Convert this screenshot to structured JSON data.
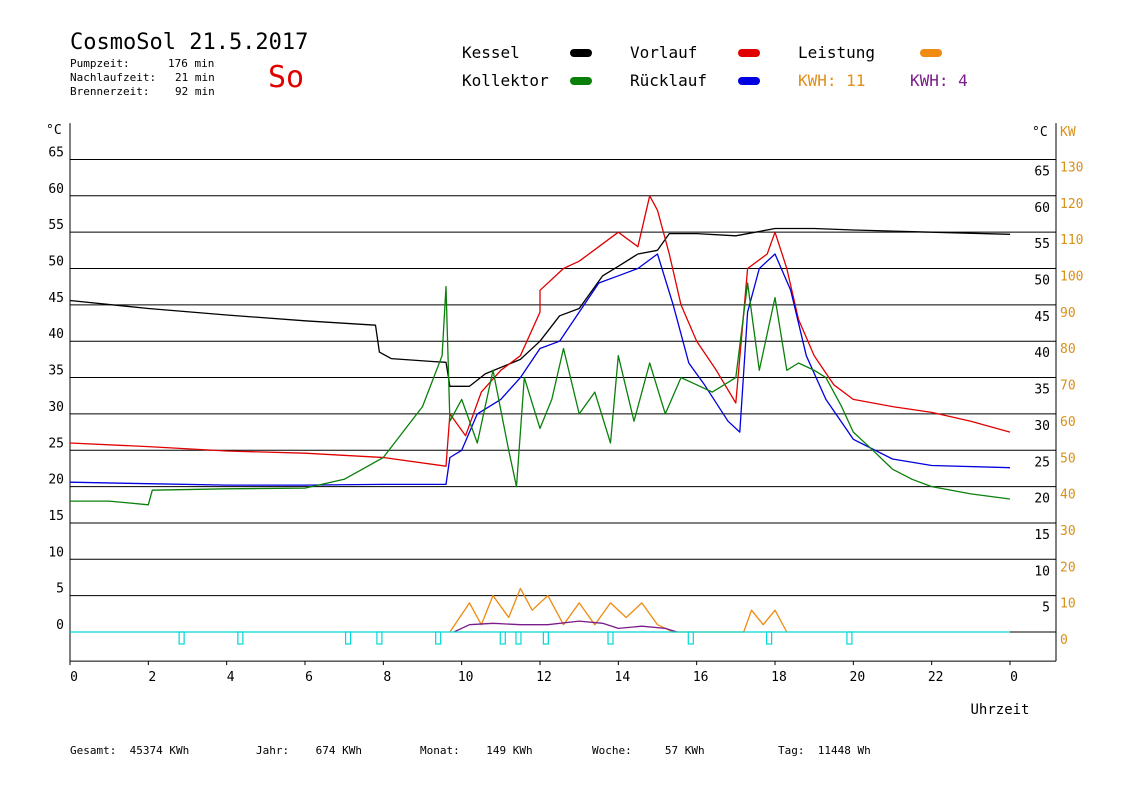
{
  "header": {
    "title": "CosmoSol 21.5.2017",
    "day_label": "So",
    "stats": [
      {
        "label": "Pumpzeit:",
        "value": "176 min"
      },
      {
        "label": "Nachlaufzeit:",
        "value": "21 min"
      },
      {
        "label": "Brennerzeit:",
        "value": "92 min"
      }
    ]
  },
  "legend": {
    "kessel": {
      "label": "Kessel",
      "color": "#000000"
    },
    "vorlauf": {
      "label": "Vorlauf",
      "color": "#e00000"
    },
    "leistung": {
      "label": "Leistung",
      "color": "#f08a10"
    },
    "kollektor": {
      "label": "Kollektor",
      "color": "#0a800a"
    },
    "ruecklauf": {
      "label": "Rücklauf",
      "color": "#0000e0"
    },
    "kwh_orange": {
      "label": "KWH: 11",
      "color": "#e0901a"
    },
    "kwh_purple": {
      "label": "KWH: 4",
      "color": "#7a1c8a"
    }
  },
  "footer": {
    "gesamt": "Gesamt:  45374 KWh",
    "jahr": "Jahr:    674 KWh",
    "monat": "Monat:    149 KWh",
    "woche": "Woche:     57 KWh",
    "tag": "Tag:  11448 Wh"
  },
  "chart_data": {
    "type": "line",
    "xlabel": "Uhrzeit",
    "left_unit": "°C",
    "right_unit_temp": "°C",
    "right_unit_power": "KW",
    "x_ticks": [
      "0",
      "2",
      "4",
      "6",
      "8",
      "10",
      "12",
      "14",
      "16",
      "18",
      "20",
      "22",
      "0"
    ],
    "xlim": [
      0,
      24
    ],
    "ylim": [
      -4,
      70
    ],
    "y_ticks_left": [
      "65",
      "60",
      "55",
      "50",
      "45",
      "40",
      "35",
      "30",
      "25",
      "20",
      "15",
      "10",
      "5",
      "0"
    ],
    "y_ticks_right": [
      "65",
      "60",
      "55",
      "50",
      "45",
      "40",
      "35",
      "30",
      "25",
      "20",
      "15",
      "10",
      "5"
    ],
    "y_ticks_power": [
      "130",
      "120",
      "110",
      "100",
      "90",
      "80",
      "70",
      "60",
      "50",
      "40",
      "30",
      "20",
      "10",
      "0"
    ],
    "grid_y": [
      0,
      5,
      10,
      15,
      20,
      25,
      30,
      35,
      40,
      45,
      50,
      55,
      60,
      65
    ],
    "series": [
      {
        "name": "Kessel",
        "color": "#000000",
        "points": [
          [
            0,
            45.6
          ],
          [
            2,
            44.5
          ],
          [
            4,
            43.6
          ],
          [
            6,
            42.8
          ],
          [
            7.8,
            42.2
          ],
          [
            7.9,
            38.5
          ],
          [
            8.2,
            37.6
          ],
          [
            9.3,
            37.2
          ],
          [
            9.6,
            37.1
          ],
          [
            9.7,
            33.8
          ],
          [
            10.2,
            33.8
          ],
          [
            10.6,
            35.5
          ],
          [
            11.5,
            37.5
          ],
          [
            12,
            40
          ],
          [
            12.5,
            43.5
          ],
          [
            13,
            44.5
          ],
          [
            13.6,
            49
          ],
          [
            14,
            50.3
          ],
          [
            14.5,
            52
          ],
          [
            15,
            52.5
          ],
          [
            15.3,
            54.8
          ],
          [
            16,
            54.8
          ],
          [
            17,
            54.5
          ],
          [
            17.5,
            55
          ],
          [
            18,
            55.5
          ],
          [
            19,
            55.5
          ],
          [
            20,
            55.3
          ],
          [
            22,
            55
          ],
          [
            24,
            54.7
          ]
        ]
      },
      {
        "name": "Vorlauf",
        "color": "#e00000",
        "points": [
          [
            0,
            26
          ],
          [
            2,
            25.5
          ],
          [
            4,
            24.9
          ],
          [
            6,
            24.6
          ],
          [
            8,
            24
          ],
          [
            9.6,
            22.8
          ],
          [
            9.7,
            30
          ],
          [
            10.1,
            27
          ],
          [
            10.5,
            33
          ],
          [
            11,
            36
          ],
          [
            11.5,
            38
          ],
          [
            12,
            44
          ],
          [
            12,
            47
          ],
          [
            12.6,
            50
          ],
          [
            13,
            51
          ],
          [
            13.5,
            53
          ],
          [
            14,
            55
          ],
          [
            14.5,
            53
          ],
          [
            14.8,
            60
          ],
          [
            15,
            58
          ],
          [
            15.3,
            52
          ],
          [
            15.6,
            45
          ],
          [
            16,
            40
          ],
          [
            16.5,
            36
          ],
          [
            17,
            31.5
          ],
          [
            17.3,
            50
          ],
          [
            17.8,
            52
          ],
          [
            18,
            55
          ],
          [
            18.3,
            50
          ],
          [
            18.6,
            43
          ],
          [
            19,
            38
          ],
          [
            19.5,
            34
          ],
          [
            20,
            32
          ],
          [
            21,
            31
          ],
          [
            22,
            30.2
          ],
          [
            23,
            29
          ],
          [
            24,
            27.5
          ]
        ]
      },
      {
        "name": "Rücklauf",
        "color": "#0000e0",
        "points": [
          [
            0,
            20.6
          ],
          [
            2,
            20.4
          ],
          [
            4,
            20.2
          ],
          [
            6,
            20.2
          ],
          [
            8,
            20.3
          ],
          [
            9.6,
            20.3
          ],
          [
            9.7,
            24
          ],
          [
            10,
            25
          ],
          [
            10.4,
            30
          ],
          [
            11,
            32
          ],
          [
            11.5,
            35
          ],
          [
            12,
            39
          ],
          [
            12.5,
            40
          ],
          [
            13,
            44
          ],
          [
            13.5,
            48
          ],
          [
            14,
            49
          ],
          [
            14.5,
            50
          ],
          [
            15,
            52
          ],
          [
            15.4,
            45
          ],
          [
            15.8,
            37
          ],
          [
            16.2,
            34
          ],
          [
            16.8,
            29
          ],
          [
            17.1,
            27.5
          ],
          [
            17.3,
            44
          ],
          [
            17.6,
            50
          ],
          [
            18,
            52
          ],
          [
            18.4,
            47
          ],
          [
            18.8,
            38
          ],
          [
            19.3,
            32
          ],
          [
            20,
            26.5
          ],
          [
            21,
            23.8
          ],
          [
            22,
            22.9
          ],
          [
            24,
            22.6
          ]
        ]
      },
      {
        "name": "Kollektor",
        "color": "#0a800a",
        "points": [
          [
            0,
            18
          ],
          [
            1,
            18
          ],
          [
            2,
            17.5
          ],
          [
            2.1,
            19.5
          ],
          [
            4,
            19.7
          ],
          [
            6,
            19.8
          ],
          [
            7,
            21
          ],
          [
            8,
            24
          ],
          [
            9,
            31
          ],
          [
            9.5,
            38
          ],
          [
            9.6,
            47.5
          ],
          [
            9.7,
            29
          ],
          [
            10,
            32
          ],
          [
            10.4,
            26
          ],
          [
            10.8,
            36
          ],
          [
            11.2,
            25
          ],
          [
            11.4,
            20
          ],
          [
            11.6,
            35
          ],
          [
            12,
            28
          ],
          [
            12.3,
            32
          ],
          [
            12.6,
            39
          ],
          [
            13,
            30
          ],
          [
            13.4,
            33
          ],
          [
            13.8,
            26
          ],
          [
            14,
            38
          ],
          [
            14.4,
            29
          ],
          [
            14.8,
            37
          ],
          [
            15.2,
            30
          ],
          [
            15.6,
            35
          ],
          [
            16,
            34
          ],
          [
            16.4,
            33
          ],
          [
            17,
            35
          ],
          [
            17.3,
            48
          ],
          [
            17.6,
            36
          ],
          [
            18,
            46
          ],
          [
            18.3,
            36
          ],
          [
            18.6,
            37
          ],
          [
            19,
            36
          ],
          [
            19.3,
            35
          ],
          [
            19.7,
            31
          ],
          [
            20,
            27.5
          ],
          [
            20.5,
            25
          ],
          [
            21,
            22.4
          ],
          [
            21.5,
            21
          ],
          [
            22,
            20
          ],
          [
            23,
            19
          ],
          [
            24,
            18.3
          ]
        ]
      },
      {
        "name": "Leistung",
        "color": "#f08a10",
        "points": [
          [
            9.7,
            0
          ],
          [
            10.2,
            4
          ],
          [
            10.5,
            1
          ],
          [
            10.8,
            5
          ],
          [
            11.2,
            2
          ],
          [
            11.5,
            6
          ],
          [
            11.8,
            3
          ],
          [
            12.2,
            5
          ],
          [
            12.6,
            1
          ],
          [
            13,
            4
          ],
          [
            13.4,
            1
          ],
          [
            13.8,
            4
          ],
          [
            14.2,
            2
          ],
          [
            14.6,
            4
          ],
          [
            15,
            1
          ],
          [
            15.4,
            0
          ],
          [
            17.2,
            0
          ],
          [
            17.4,
            3
          ],
          [
            17.7,
            1
          ],
          [
            18,
            3
          ],
          [
            18.3,
            0
          ]
        ]
      },
      {
        "name": "KWH",
        "color": "#7a1c8a",
        "points": [
          [
            9.8,
            0
          ],
          [
            10.2,
            1
          ],
          [
            10.8,
            1.2
          ],
          [
            11.5,
            1
          ],
          [
            12.2,
            1
          ],
          [
            13,
            1.5
          ],
          [
            13.6,
            1.2
          ],
          [
            14,
            0.5
          ],
          [
            14.6,
            0.8
          ],
          [
            15.2,
            0.5
          ],
          [
            15.5,
            0
          ]
        ]
      },
      {
        "name": "Pumpe",
        "color": "#00d8d8",
        "points": [
          [
            0,
            0
          ],
          [
            24,
            0
          ]
        ]
      }
    ],
    "pump_pulses": [
      2.85,
      4.35,
      7.1,
      7.9,
      9.4,
      11.05,
      11.45,
      12.15,
      13.8,
      15.85,
      17.85,
      19.9
    ]
  }
}
